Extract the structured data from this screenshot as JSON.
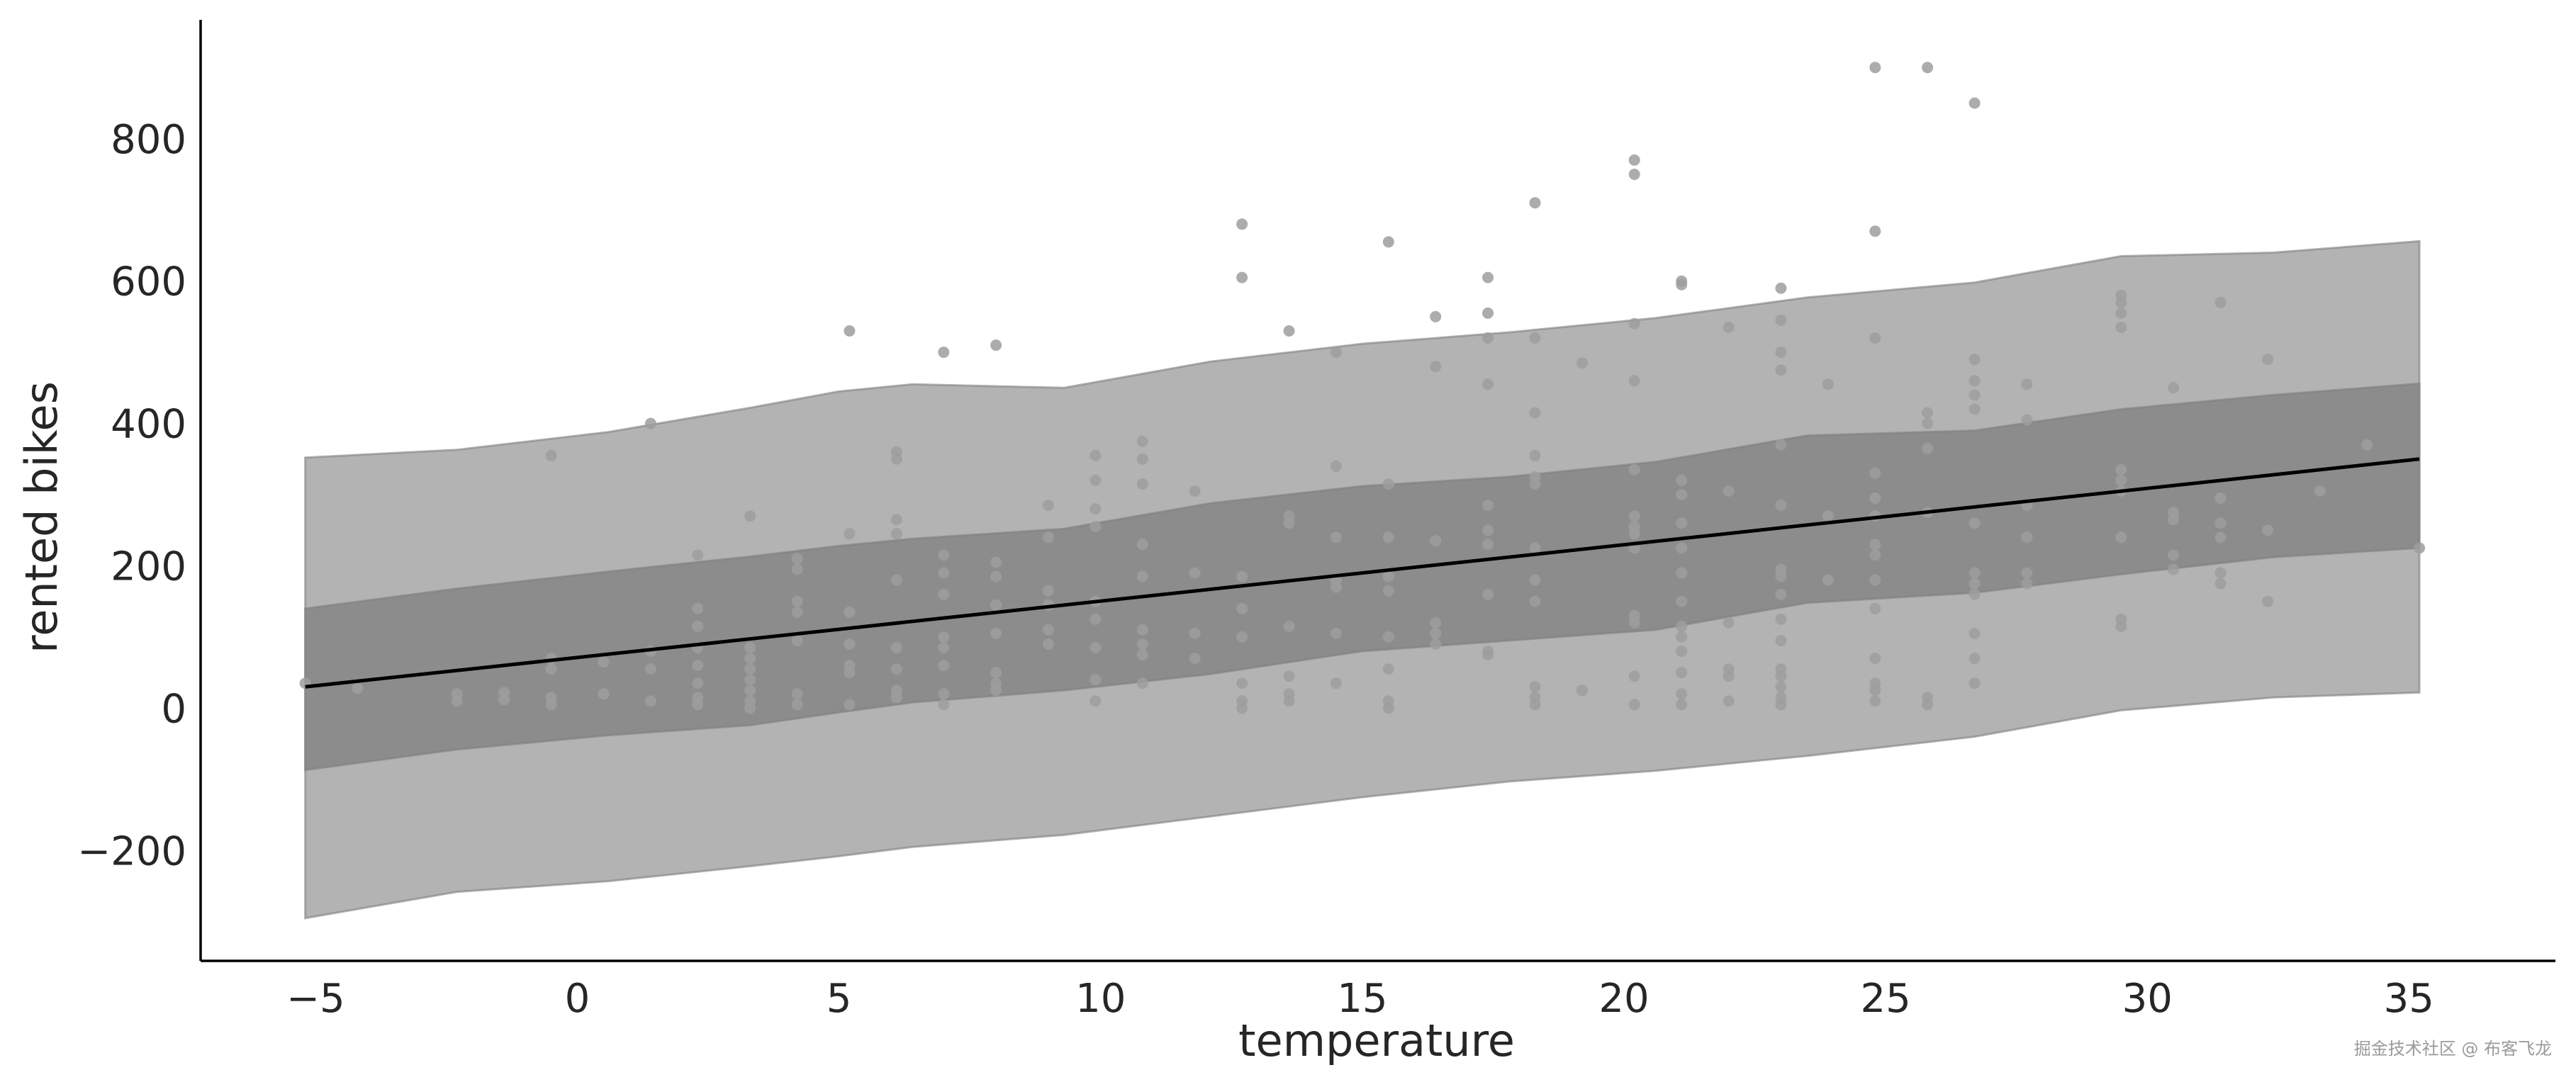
{
  "chart_data": {
    "type": "scatter",
    "title": "",
    "xlabel": "temperature",
    "ylabel": "rented bikes",
    "xlim": [
      -7.2,
      37.8
    ],
    "ylim": [
      -355,
      965
    ],
    "xticks": [
      -5,
      0,
      5,
      10,
      15,
      20,
      25,
      30,
      35
    ],
    "xtick_labels": [
      "−5",
      "0",
      "5",
      "10",
      "15",
      "20",
      "25",
      "30",
      "35"
    ],
    "yticks": [
      -200,
      0,
      200,
      400,
      600,
      800
    ],
    "ytick_labels": [
      "−200",
      "0",
      "200",
      "400",
      "600",
      "800"
    ],
    "grid": false,
    "colors": {
      "outer_band": "#b3b3b3",
      "inner_band": "#8c8c8c",
      "band_edge": "#7f7f7f",
      "points": "#9e9e9e",
      "mean_line": "#000000",
      "axis": "#000000"
    },
    "mean_line": {
      "x": [
        -5.2,
        35.2
      ],
      "y": [
        30,
        350
      ]
    },
    "band_x": [
      -5.2,
      -2.3,
      0.6,
      3.3,
      5.0,
      6.4,
      9.3,
      12.1,
      15.0,
      17.8,
      20.6,
      23.5,
      26.7,
      29.5,
      32.4,
      35.2
    ],
    "band_94_upper": [
      352,
      363,
      388,
      422,
      445,
      455,
      450,
      487,
      512,
      528,
      548,
      577,
      598,
      635,
      640,
      656
    ],
    "band_94_lower": [
      -295,
      -258,
      -243,
      -222,
      -208,
      -195,
      -178,
      -152,
      -125,
      -103,
      -88,
      -67,
      -40,
      -3,
      15,
      22
    ],
    "band_50_upper": [
      140,
      168,
      192,
      213,
      228,
      238,
      252,
      288,
      312,
      325,
      346,
      383,
      390,
      420,
      440,
      456
    ],
    "band_50_lower": [
      -87,
      -58,
      -38,
      -24,
      -6,
      8,
      25,
      48,
      80,
      95,
      110,
      148,
      162,
      188,
      212,
      225
    ],
    "points": [
      [
        -5.2,
        35
      ],
      [
        -4.2,
        28
      ],
      [
        -2.3,
        10
      ],
      [
        -2.3,
        20
      ],
      [
        -1.4,
        22
      ],
      [
        -1.4,
        12
      ],
      [
        -0.5,
        355
      ],
      [
        -0.5,
        70
      ],
      [
        -0.5,
        55
      ],
      [
        -0.5,
        15
      ],
      [
        -0.5,
        5
      ],
      [
        0.5,
        65
      ],
      [
        0.5,
        20
      ],
      [
        1.4,
        400
      ],
      [
        1.4,
        80
      ],
      [
        1.4,
        55
      ],
      [
        1.4,
        10
      ],
      [
        2.3,
        215
      ],
      [
        2.3,
        140
      ],
      [
        2.3,
        115
      ],
      [
        2.3,
        85
      ],
      [
        2.3,
        60
      ],
      [
        2.3,
        35
      ],
      [
        2.3,
        15
      ],
      [
        2.3,
        5
      ],
      [
        3.3,
        270
      ],
      [
        3.3,
        85
      ],
      [
        3.3,
        70
      ],
      [
        3.3,
        55
      ],
      [
        3.3,
        40
      ],
      [
        3.3,
        25
      ],
      [
        3.3,
        10
      ],
      [
        3.3,
        0
      ],
      [
        4.2,
        210
      ],
      [
        4.2,
        195
      ],
      [
        4.2,
        150
      ],
      [
        4.2,
        135
      ],
      [
        4.2,
        95
      ],
      [
        4.2,
        20
      ],
      [
        4.2,
        5
      ],
      [
        5.2,
        530
      ],
      [
        5.2,
        245
      ],
      [
        5.2,
        135
      ],
      [
        5.2,
        90
      ],
      [
        5.2,
        60
      ],
      [
        5.2,
        50
      ],
      [
        5.2,
        5
      ],
      [
        6.1,
        360
      ],
      [
        6.1,
        350
      ],
      [
        6.1,
        265
      ],
      [
        6.1,
        245
      ],
      [
        6.1,
        180
      ],
      [
        6.1,
        85
      ],
      [
        6.1,
        55
      ],
      [
        6.1,
        25
      ],
      [
        6.1,
        15
      ],
      [
        7.0,
        500
      ],
      [
        7.0,
        215
      ],
      [
        7.0,
        190
      ],
      [
        7.0,
        160
      ],
      [
        7.0,
        100
      ],
      [
        7.0,
        85
      ],
      [
        7.0,
        60
      ],
      [
        7.0,
        20
      ],
      [
        7.0,
        5
      ],
      [
        8.0,
        510
      ],
      [
        8.0,
        205
      ],
      [
        8.0,
        185
      ],
      [
        8.0,
        145
      ],
      [
        8.0,
        105
      ],
      [
        8.0,
        50
      ],
      [
        8.0,
        35
      ],
      [
        8.0,
        25
      ],
      [
        9.0,
        285
      ],
      [
        9.0,
        240
      ],
      [
        9.0,
        165
      ],
      [
        9.0,
        145
      ],
      [
        9.0,
        110
      ],
      [
        9.0,
        90
      ],
      [
        9.9,
        355
      ],
      [
        9.9,
        320
      ],
      [
        9.9,
        280
      ],
      [
        9.9,
        255
      ],
      [
        9.9,
        150
      ],
      [
        9.9,
        125
      ],
      [
        9.9,
        85
      ],
      [
        9.9,
        40
      ],
      [
        9.9,
        10
      ],
      [
        10.8,
        375
      ],
      [
        10.8,
        350
      ],
      [
        10.8,
        315
      ],
      [
        10.8,
        230
      ],
      [
        10.8,
        185
      ],
      [
        10.8,
        110
      ],
      [
        10.8,
        90
      ],
      [
        10.8,
        75
      ],
      [
        10.8,
        35
      ],
      [
        11.8,
        305
      ],
      [
        11.8,
        190
      ],
      [
        11.8,
        105
      ],
      [
        11.8,
        70
      ],
      [
        12.7,
        680
      ],
      [
        12.7,
        605
      ],
      [
        12.7,
        185
      ],
      [
        12.7,
        140
      ],
      [
        12.7,
        100
      ],
      [
        12.7,
        35
      ],
      [
        12.7,
        10
      ],
      [
        12.7,
        0
      ],
      [
        13.6,
        530
      ],
      [
        13.6,
        270
      ],
      [
        13.6,
        260
      ],
      [
        13.6,
        115
      ],
      [
        13.6,
        45
      ],
      [
        13.6,
        20
      ],
      [
        13.6,
        10
      ],
      [
        14.5,
        500
      ],
      [
        14.5,
        340
      ],
      [
        14.5,
        240
      ],
      [
        14.5,
        180
      ],
      [
        14.5,
        170
      ],
      [
        14.5,
        105
      ],
      [
        14.5,
        35
      ],
      [
        15.5,
        655
      ],
      [
        15.5,
        315
      ],
      [
        15.5,
        240
      ],
      [
        15.5,
        185
      ],
      [
        15.5,
        165
      ],
      [
        15.5,
        100
      ],
      [
        15.5,
        55
      ],
      [
        15.5,
        10
      ],
      [
        15.5,
        0
      ],
      [
        16.4,
        550
      ],
      [
        16.4,
        480
      ],
      [
        16.4,
        235
      ],
      [
        16.4,
        120
      ],
      [
        16.4,
        105
      ],
      [
        16.4,
        90
      ],
      [
        17.4,
        605
      ],
      [
        17.4,
        555
      ],
      [
        17.4,
        520
      ],
      [
        17.4,
        455
      ],
      [
        17.4,
        285
      ],
      [
        17.4,
        250
      ],
      [
        17.4,
        230
      ],
      [
        17.4,
        160
      ],
      [
        17.4,
        80
      ],
      [
        17.4,
        75
      ],
      [
        18.3,
        710
      ],
      [
        18.3,
        520
      ],
      [
        18.3,
        415
      ],
      [
        18.3,
        355
      ],
      [
        18.3,
        325
      ],
      [
        18.3,
        315
      ],
      [
        18.3,
        225
      ],
      [
        18.3,
        180
      ],
      [
        18.3,
        150
      ],
      [
        18.3,
        30
      ],
      [
        18.3,
        15
      ],
      [
        18.3,
        5
      ],
      [
        19.2,
        485
      ],
      [
        19.2,
        25
      ],
      [
        20.2,
        770
      ],
      [
        20.2,
        750
      ],
      [
        20.2,
        540
      ],
      [
        20.2,
        460
      ],
      [
        20.2,
        335
      ],
      [
        20.2,
        270
      ],
      [
        20.2,
        255
      ],
      [
        20.2,
        245
      ],
      [
        20.2,
        225
      ],
      [
        20.2,
        130
      ],
      [
        20.2,
        120
      ],
      [
        20.2,
        45
      ],
      [
        20.2,
        5
      ],
      [
        21.1,
        600
      ],
      [
        21.1,
        595
      ],
      [
        21.1,
        320
      ],
      [
        21.1,
        300
      ],
      [
        21.1,
        260
      ],
      [
        21.1,
        225
      ],
      [
        21.1,
        190
      ],
      [
        21.1,
        150
      ],
      [
        21.1,
        115
      ],
      [
        21.1,
        100
      ],
      [
        21.1,
        80
      ],
      [
        21.1,
        50
      ],
      [
        21.1,
        20
      ],
      [
        21.1,
        5
      ],
      [
        22.0,
        535
      ],
      [
        22.0,
        305
      ],
      [
        22.0,
        120
      ],
      [
        22.0,
        55
      ],
      [
        22.0,
        45
      ],
      [
        22.0,
        10
      ],
      [
        23.0,
        590
      ],
      [
        23.0,
        545
      ],
      [
        23.0,
        500
      ],
      [
        23.0,
        475
      ],
      [
        23.0,
        370
      ],
      [
        23.0,
        285
      ],
      [
        23.0,
        195
      ],
      [
        23.0,
        185
      ],
      [
        23.0,
        160
      ],
      [
        23.0,
        125
      ],
      [
        23.0,
        95
      ],
      [
        23.0,
        55
      ],
      [
        23.0,
        45
      ],
      [
        23.0,
        30
      ],
      [
        23.0,
        15
      ],
      [
        23.0,
        5
      ],
      [
        23.9,
        455
      ],
      [
        23.9,
        270
      ],
      [
        23.9,
        180
      ],
      [
        24.8,
        900
      ],
      [
        24.8,
        670
      ],
      [
        24.8,
        520
      ],
      [
        24.8,
        330
      ],
      [
        24.8,
        295
      ],
      [
        24.8,
        270
      ],
      [
        24.8,
        230
      ],
      [
        24.8,
        215
      ],
      [
        24.8,
        180
      ],
      [
        24.8,
        140
      ],
      [
        24.8,
        70
      ],
      [
        24.8,
        35
      ],
      [
        24.8,
        25
      ],
      [
        24.8,
        10
      ],
      [
        25.8,
        900
      ],
      [
        25.8,
        415
      ],
      [
        25.8,
        400
      ],
      [
        25.8,
        365
      ],
      [
        25.8,
        275
      ],
      [
        25.8,
        15
      ],
      [
        25.8,
        5
      ],
      [
        26.7,
        850
      ],
      [
        26.7,
        490
      ],
      [
        26.7,
        460
      ],
      [
        26.7,
        440
      ],
      [
        26.7,
        420
      ],
      [
        26.7,
        260
      ],
      [
        26.7,
        190
      ],
      [
        26.7,
        175
      ],
      [
        26.7,
        160
      ],
      [
        26.7,
        105
      ],
      [
        26.7,
        70
      ],
      [
        26.7,
        35
      ],
      [
        27.7,
        455
      ],
      [
        27.7,
        405
      ],
      [
        27.7,
        285
      ],
      [
        27.7,
        240
      ],
      [
        27.7,
        190
      ],
      [
        27.7,
        175
      ],
      [
        29.5,
        580
      ],
      [
        29.5,
        570
      ],
      [
        29.5,
        555
      ],
      [
        29.5,
        535
      ],
      [
        29.5,
        335
      ],
      [
        29.5,
        320
      ],
      [
        29.5,
        305
      ],
      [
        29.5,
        240
      ],
      [
        29.5,
        125
      ],
      [
        29.5,
        115
      ],
      [
        30.5,
        450
      ],
      [
        30.5,
        275
      ],
      [
        30.5,
        265
      ],
      [
        30.5,
        215
      ],
      [
        30.5,
        195
      ],
      [
        31.4,
        570
      ],
      [
        31.4,
        295
      ],
      [
        31.4,
        260
      ],
      [
        31.4,
        240
      ],
      [
        31.4,
        190
      ],
      [
        31.4,
        175
      ],
      [
        32.3,
        490
      ],
      [
        32.3,
        250
      ],
      [
        32.3,
        150
      ],
      [
        33.3,
        305
      ],
      [
        34.2,
        370
      ],
      [
        35.2,
        225
      ]
    ]
  },
  "watermark": "掘金技术社区 @ 布客飞龙"
}
